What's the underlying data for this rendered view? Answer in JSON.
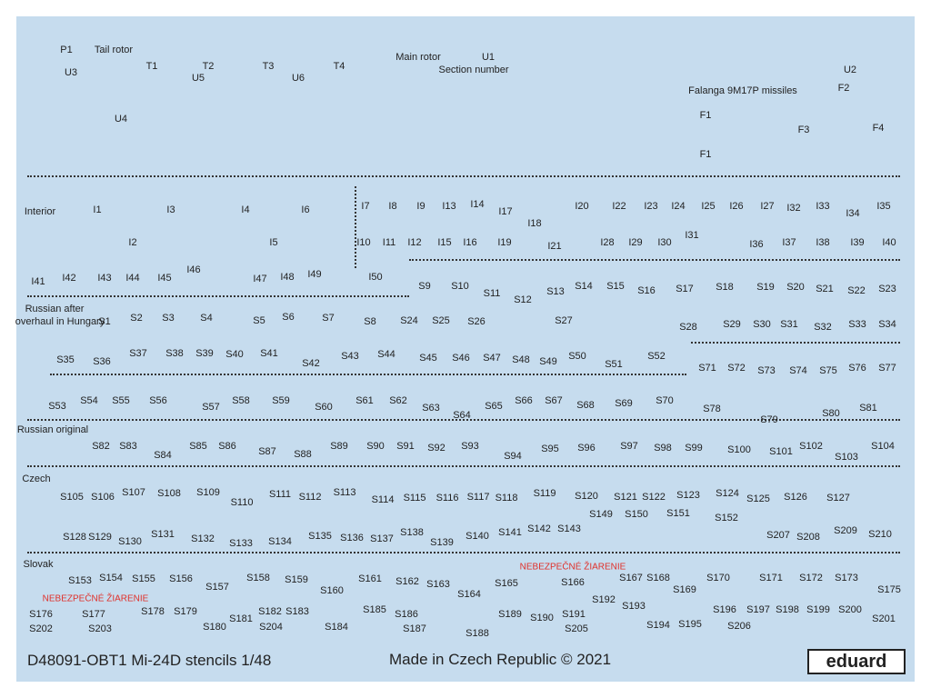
{
  "labels": [
    "P1",
    "Tail rotor",
    "U3",
    "T1",
    "T2",
    "T3",
    "T4",
    "U5",
    "U6",
    "Main rotor",
    "U1",
    "Section number",
    "U2",
    "U4",
    "Falanga 9M17P missiles",
    "F2",
    "F1",
    "F3",
    "F4",
    "F1",
    "Interior",
    "I1",
    "I3",
    "I4",
    "I6",
    "I2",
    "I5",
    "I7",
    "I8",
    "I9",
    "I13",
    "I14",
    "I17",
    "I18",
    "I20",
    "I22",
    "I23",
    "I24",
    "I25",
    "I26",
    "I27",
    "I32",
    "I33",
    "I34",
    "I35",
    "I10",
    "I11",
    "I12",
    "I15",
    "I16",
    "I19",
    "I21",
    "I28",
    "I29",
    "I30",
    "I31",
    "I36",
    "I37",
    "I38",
    "I39",
    "I40",
    "I41",
    "I42",
    "I43",
    "I44",
    "I45",
    "I46",
    "I47",
    "I48",
    "I49",
    "I50",
    "S9",
    "S10",
    "S11",
    "S12",
    "S13",
    "S14",
    "S15",
    "S16",
    "S17",
    "S18",
    "S19",
    "S20",
    "S21",
    "S22",
    "S23",
    "Russian after",
    "overhaul in Hungary",
    "S1",
    "S2",
    "S3",
    "S4",
    "S5",
    "S6",
    "S7",
    "S8",
    "S24",
    "S25",
    "S26",
    "S27",
    "S28",
    "S29",
    "S30",
    "S31",
    "S32",
    "S33",
    "S34",
    "S35",
    "S36",
    "S37",
    "S38",
    "S39",
    "S40",
    "S41",
    "S42",
    "S43",
    "S44",
    "S45",
    "S46",
    "S47",
    "S48",
    "S49",
    "S50",
    "S51",
    "S52",
    "S71",
    "S72",
    "S73",
    "S74",
    "S75",
    "S76",
    "S77",
    "S53",
    "S54",
    "S55",
    "S56",
    "S57",
    "S58",
    "S59",
    "S60",
    "S61",
    "S62",
    "S63",
    "S64",
    "S65",
    "S66",
    "S67",
    "S68",
    "S69",
    "S70",
    "S78",
    "S79",
    "S80",
    "S81",
    "Russian original",
    "S82",
    "S83",
    "S84",
    "S85",
    "S86",
    "S87",
    "S88",
    "S89",
    "S90",
    "S91",
    "S92",
    "S93",
    "S94",
    "S95",
    "S96",
    "S97",
    "S98",
    "S99",
    "S100",
    "S101",
    "S102",
    "S103",
    "S104",
    "Czech",
    "S105",
    "S106",
    "S107",
    "S108",
    "S109",
    "S110",
    "S111",
    "S112",
    "S113",
    "S114",
    "S115",
    "S116",
    "S117",
    "S118",
    "S119",
    "S120",
    "S121",
    "S122",
    "S123",
    "S124",
    "S125",
    "S126",
    "S127",
    "S128",
    "S129",
    "S130",
    "S131",
    "S132",
    "S133",
    "S134",
    "S135",
    "S136",
    "S137",
    "S138",
    "S139",
    "S140",
    "S141",
    "S142",
    "S143",
    "S149",
    "S150",
    "S151",
    "S152",
    "S207",
    "S208",
    "S209",
    "S210",
    "Slovak",
    "S153",
    "S154",
    "S155",
    "S156",
    "S157",
    "S158",
    "S159",
    "S160",
    "S161",
    "S162",
    "S163",
    "S164",
    "S165",
    "S166",
    "S167",
    "S168",
    "S169",
    "S170",
    "S171",
    "S172",
    "S173",
    "S175",
    "S176",
    "S177",
    "S178",
    "S179",
    "S180",
    "S181",
    "S182",
    "S183",
    "S184",
    "S185",
    "S186",
    "S187",
    "S188",
    "S189",
    "S190",
    "S191",
    "S192",
    "S193",
    "S194",
    "S195",
    "S196",
    "S197",
    "S198",
    "S199",
    "S200",
    "S201",
    "S202",
    "S203",
    "S204",
    "S205",
    "S206"
  ],
  "warnings": [
    "NEBEZPEČNÉ ŽIARENIE",
    "NEBEZPEČNÉ ŽIARENIE"
  ],
  "footer": {
    "title": "D48091-OBT1 Mi-24D stencils 1/48",
    "made": "Made in Czech Republic © 2021",
    "logo": "eduard"
  }
}
